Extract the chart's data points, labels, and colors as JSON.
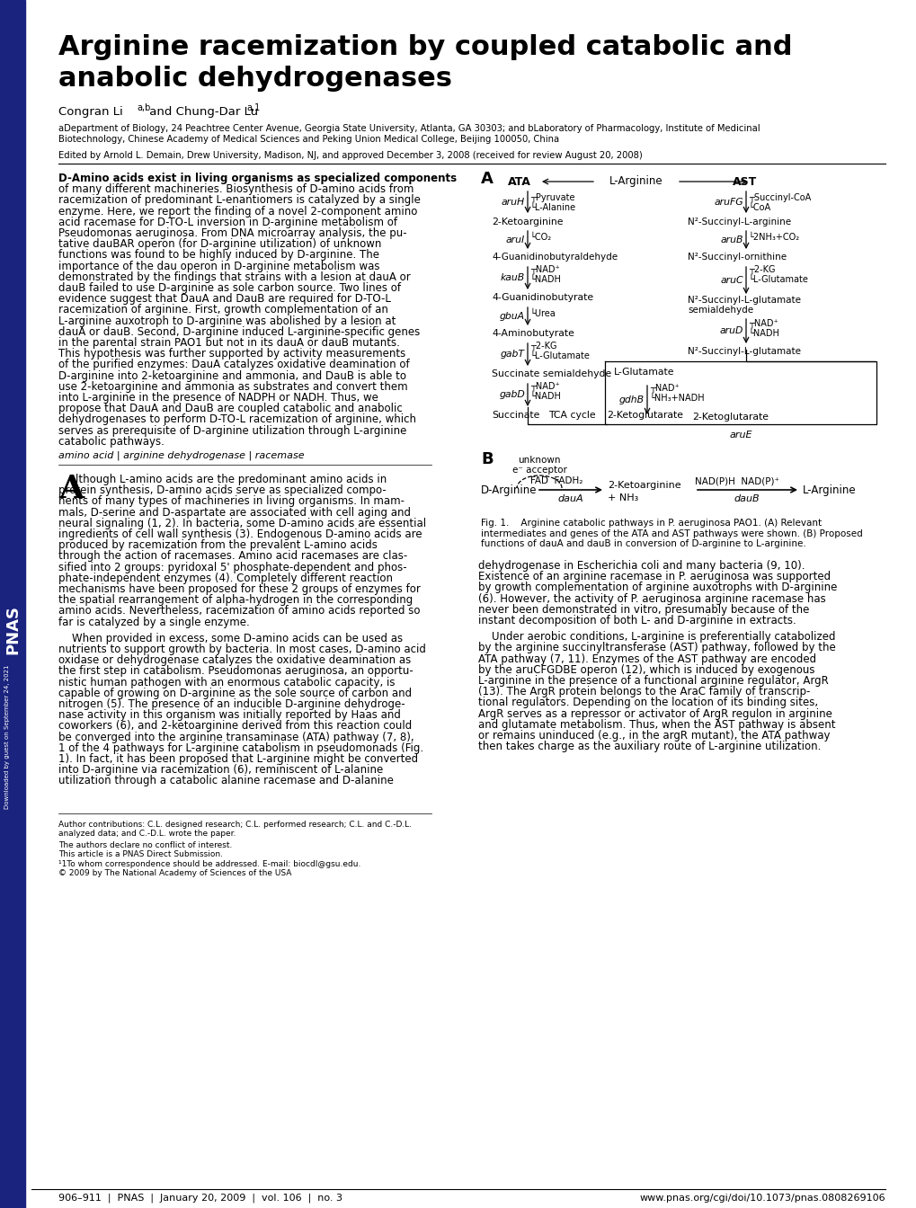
{
  "title_line1": "Arginine racemization by coupled catabolic and",
  "title_line2": "anabolic dehydrogenases",
  "author_main": "Congran Li",
  "author_super1": "a,b",
  "author_and": " and Chung-Dar Lu",
  "author_super2": "a,1",
  "affil1": "aDepartment of Biology, 24 Peachtree Center Avenue, Georgia State University, Atlanta, GA 30303; and bLaboratory of Pharmacology, Institute of Medicinal",
  "affil2": "Biotechnology, Chinese Academy of Medical Sciences and Peking Union Medical College, Beijing 100050, China",
  "edited": "Edited by Arnold L. Demain, Drew University, Madison, NJ, and approved December 3, 2008 (received for review August 20, 2008)",
  "abstract_line1": "D-Amino acids exist in living organisms as specialized components",
  "abstract_rest": [
    "of many different machineries. Biosynthesis of D-amino acids from",
    "racemization of predominant L-enantiomers is catalyzed by a single",
    "enzyme. Here, we report the finding of a novel 2-component amino",
    "acid racemase for D-TO-L inversion in D-arginine metabolism of",
    "Pseudomonas aeruginosa. From DNA microarray analysis, the pu-",
    "tative dauBAR operon (for D-arginine utilization) of unknown",
    "functions was found to be highly induced by D-arginine. The",
    "importance of the dau operon in D-arginine metabolism was",
    "demonstrated by the findings that strains with a lesion at dauA or",
    "dauB failed to use D-arginine as sole carbon source. Two lines of",
    "evidence suggest that DauA and DauB are required for D-TO-L",
    "racemization of arginine. First, growth complementation of an",
    "L-arginine auxotroph to D-arginine was abolished by a lesion at",
    "dauA or dauB. Second, D-arginine induced L-arginine-specific genes",
    "in the parental strain PAO1 but not in its dauA or dauB mutants.",
    "This hypothesis was further supported by activity measurements",
    "of the purified enzymes: DauA catalyzes oxidative deamination of",
    "D-arginine into 2-ketoarginine and ammonia, and DauB is able to",
    "use 2-ketoarginine and ammonia as substrates and convert them",
    "into L-arginine in the presence of NADPH or NADH. Thus, we",
    "propose that DauA and DauB are coupled catabolic and anabolic",
    "dehydrogenases to perform D-TO-L racemization of arginine, which",
    "serves as prerequisite of D-arginine utilization through L-arginine",
    "catabolic pathways."
  ],
  "keywords": "amino acid | arginine dehydrogenase | racemase",
  "intro_p1": [
    "lthough L-amino acids are the predominant amino acids in",
    "protein synthesis, D-amino acids serve as specialized compo-",
    "nents of many types of machineries in living organisms. In mam-",
    "mals, D-serine and D-aspartate are associated with cell aging and",
    "neural signaling (1, 2). In bacteria, some D-amino acids are essential",
    "ingredients of cell wall synthesis (3). Endogenous D-amino acids are",
    "produced by racemization from the prevalent L-amino acids",
    "through the action of racemases. Amino acid racemases are clas-",
    "sified into 2 groups: pyridoxal 5' phosphate-dependent and phos-",
    "phate-independent enzymes (4). Completely different reaction",
    "mechanisms have been proposed for these 2 groups of enzymes for",
    "the spatial rearrangement of alpha-hydrogen in the corresponding",
    "amino acids. Nevertheless, racemization of amino acids reported so",
    "far is catalyzed by a single enzyme."
  ],
  "intro_p2": [
    "    When provided in excess, some D-amino acids can be used as",
    "nutrients to support growth by bacteria. In most cases, D-amino acid",
    "oxidase or dehydrogenase catalyzes the oxidative deamination as",
    "the first step in catabolism. Pseudomonas aeruginosa, an opportu-",
    "nistic human pathogen with an enormous catabolic capacity, is",
    "capable of growing on D-arginine as the sole source of carbon and",
    "nitrogen (5). The presence of an inducible D-arginine dehydroge-",
    "nase activity in this organism was initially reported by Haas and",
    "coworkers (6), and 2-ketoarginine derived from this reaction could",
    "be converged into the arginine transaminase (ATA) pathway (7, 8),",
    "1 of the 4 pathways for L-arginine catabolism in pseudomonads (Fig.",
    "1). In fact, it has been proposed that L-arginine might be converted",
    "into D-arginine via racemization (6), reminiscent of L-alanine",
    "utilization through a catabolic alanine racemase and D-alanine"
  ],
  "rcol_p1": [
    "dehydrogenase in Escherichia coli and many bacteria (9, 10).",
    "Existence of an arginine racemase in P. aeruginosa was supported",
    "by growth complementation of arginine auxotrophs with D-arginine",
    "(6). However, the activity of P. aeruginosa arginine racemase has",
    "never been demonstrated in vitro, presumably because of the",
    "instant decomposition of both L- and D-arginine in extracts."
  ],
  "rcol_p2": [
    "    Under aerobic conditions, L-arginine is preferentially catabolized",
    "by the arginine succinyltransferase (AST) pathway, followed by the",
    "ATA pathway (7, 11). Enzymes of the AST pathway are encoded",
    "by the aruCFGDBE operon (12), which is induced by exogenous",
    "L-arginine in the presence of a functional arginine regulator, ArgR",
    "(13). The ArgR protein belongs to the AraC family of transcrip-",
    "tional regulators. Depending on the location of its binding sites,",
    "ArgR serves as a repressor or activator of ArgR regulon in arginine",
    "and glutamate metabolism. Thus, when the AST pathway is absent",
    "or remains uninduced (e.g., in the argR mutant), the ATA pathway",
    "then takes charge as the auxiliary route of L-arginine utilization."
  ],
  "footnote1": "Author contributions: C.L. designed research; C.L. performed research; C.L. and C.-D.L.",
  "footnote2": "analyzed data; and C.-D.L. wrote the paper.",
  "footnote3": "The authors declare no conflict of interest.",
  "footnote4": "This article is a PNAS Direct Submission.",
  "footnote5": "1To whom correspondence should be addressed. E-mail: biocdl@gsu.edu.",
  "footnote6": "2009 by The National Academy of Sciences of the USA",
  "footer_left": "906-911  |  PNAS  |  January 20, 2009  |  vol. 106  |  no. 3",
  "footer_right": "www.pnas.org/cgi/doi/10.1073/pnas.0808269106",
  "sidebar_color": "#1a237e",
  "background_color": "#ffffff"
}
